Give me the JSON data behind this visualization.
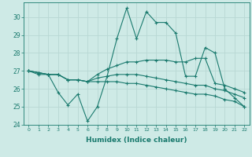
{
  "xlabel": "Humidex (Indice chaleur)",
  "ylabel": "",
  "bg_color": "#ceeae6",
  "line_color": "#1a7a6e",
  "grid_color": "#b8d8d4",
  "ylim": [
    24,
    30.8
  ],
  "xlim": [
    -0.5,
    22.5
  ],
  "yticks": [
    24,
    25,
    26,
    27,
    28,
    29,
    30
  ],
  "xticks": [
    0,
    1,
    2,
    3,
    4,
    5,
    6,
    7,
    8,
    9,
    10,
    11,
    12,
    13,
    14,
    15,
    16,
    17,
    18,
    19,
    20,
    21,
    22
  ],
  "series": [
    [
      27.0,
      26.8,
      26.8,
      25.8,
      25.1,
      25.7,
      24.2,
      25.0,
      26.7,
      28.8,
      30.5,
      28.8,
      30.3,
      29.7,
      29.7,
      29.1,
      26.7,
      26.7,
      28.3,
      28.0,
      26.0,
      25.5,
      25.0
    ],
    [
      27.0,
      26.9,
      26.8,
      26.8,
      26.5,
      26.5,
      26.4,
      26.8,
      27.1,
      27.3,
      27.5,
      27.5,
      27.6,
      27.6,
      27.6,
      27.5,
      27.5,
      27.7,
      27.7,
      26.3,
      26.2,
      26.0,
      25.8
    ],
    [
      27.0,
      26.9,
      26.8,
      26.8,
      26.5,
      26.5,
      26.4,
      26.6,
      26.7,
      26.8,
      26.8,
      26.8,
      26.7,
      26.6,
      26.5,
      26.4,
      26.3,
      26.2,
      26.2,
      26.0,
      25.9,
      25.7,
      25.5
    ],
    [
      27.0,
      26.9,
      26.8,
      26.8,
      26.5,
      26.5,
      26.4,
      26.4,
      26.4,
      26.4,
      26.3,
      26.3,
      26.2,
      26.1,
      26.0,
      25.9,
      25.8,
      25.7,
      25.7,
      25.6,
      25.4,
      25.3,
      25.0
    ]
  ]
}
